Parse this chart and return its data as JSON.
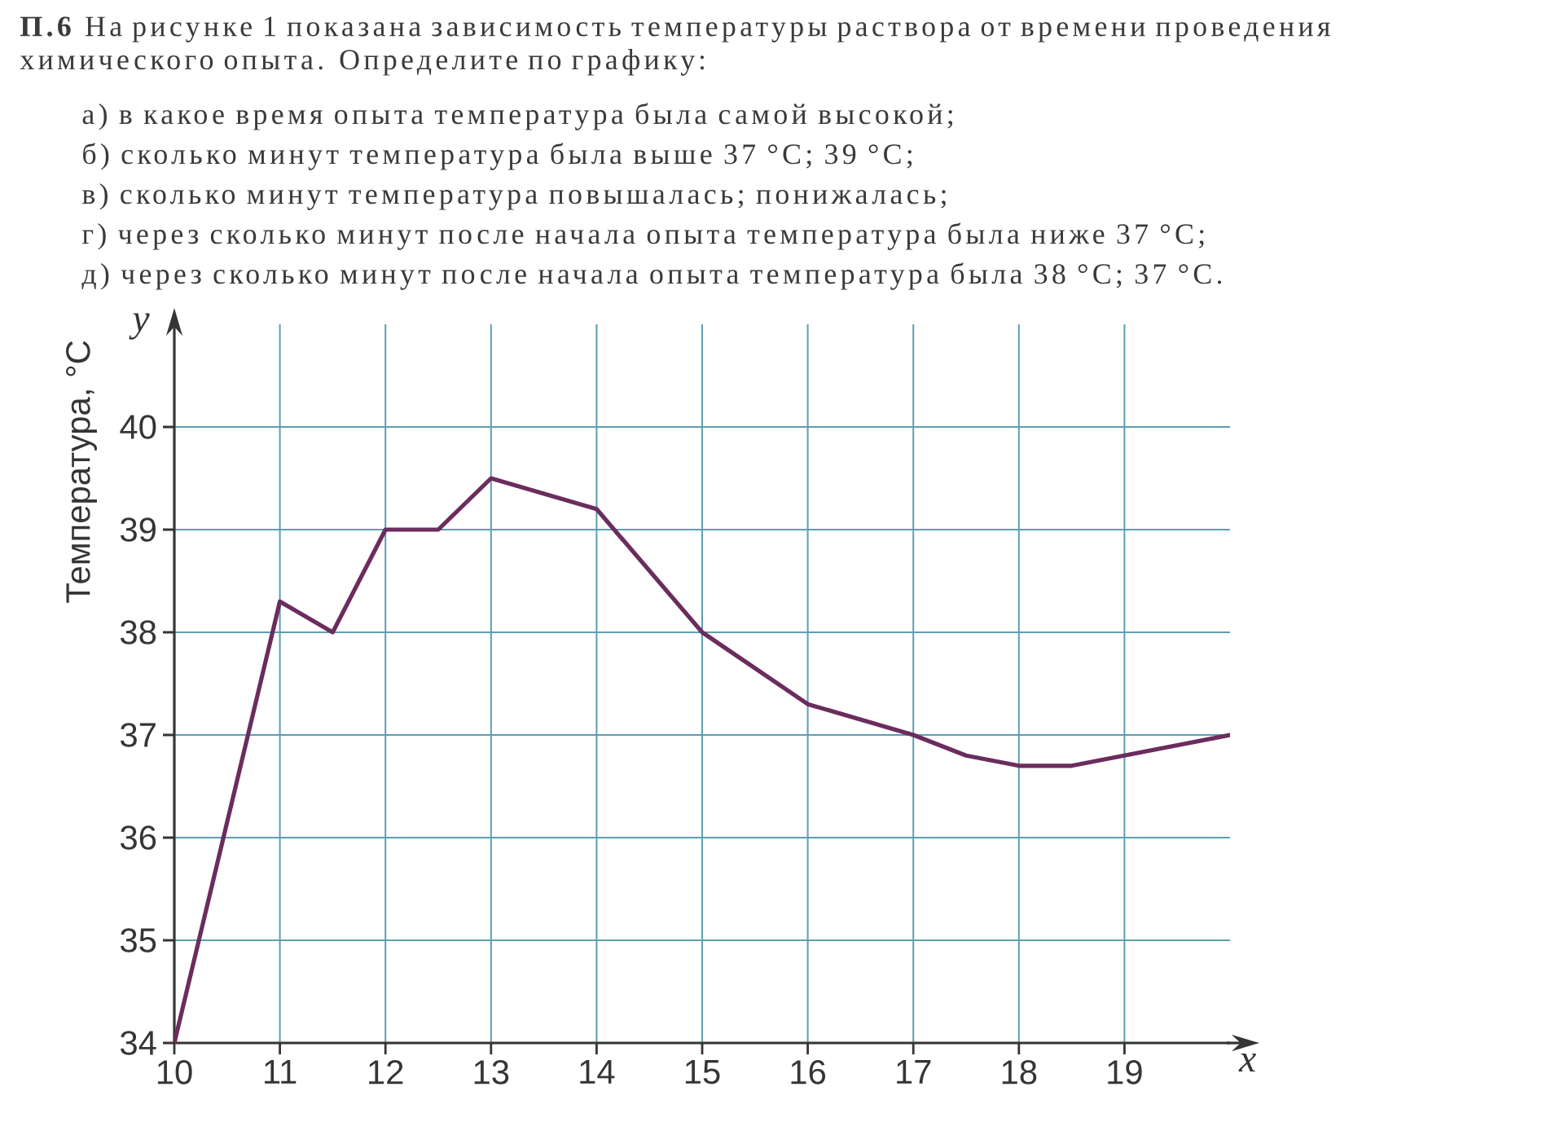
{
  "chart_data": {
    "type": "line",
    "title": "**П.6** На рисунке 1 показана зависимость температуры раствора от времени проведения химического опыта. Определите по графику:",
    "annotations": [
      "а) в какое время опыта температура была самой высокой;",
      "б) сколько минут температура была выше 37 °C; 39 °C;",
      "в) сколько минут температура повышалась; понижалась;",
      "г) через сколько минут после начала опыта температура была ниже 37 °C;",
      "д) через сколько минут после начала опыта температура была 38 °C; 37 °C.",
      "y"
    ],
    "xlabel": "x",
    "ylabel": "Температура, °C",
    "x": [
      10,
      11,
      11.5,
      12,
      12.5,
      13,
      14,
      15,
      16,
      17,
      17.5,
      18,
      18.5,
      20
    ],
    "series": [
      {
        "color": "#6b2c5e",
        "values": [
          34,
          38.3,
          38,
          39,
          39,
          39.5,
          39.2,
          38,
          37.3,
          37,
          36.8,
          36.7,
          36.7,
          37
        ]
      }
    ],
    "xlim": [
      10,
      20
    ],
    "ylim": [
      34,
      41
    ],
    "xticks": [
      10,
      11,
      12,
      13,
      14,
      15,
      16,
      17,
      18,
      19
    ],
    "yticks": [
      34,
      35,
      36,
      37,
      38,
      39,
      40
    ],
    "grid": true
  }
}
